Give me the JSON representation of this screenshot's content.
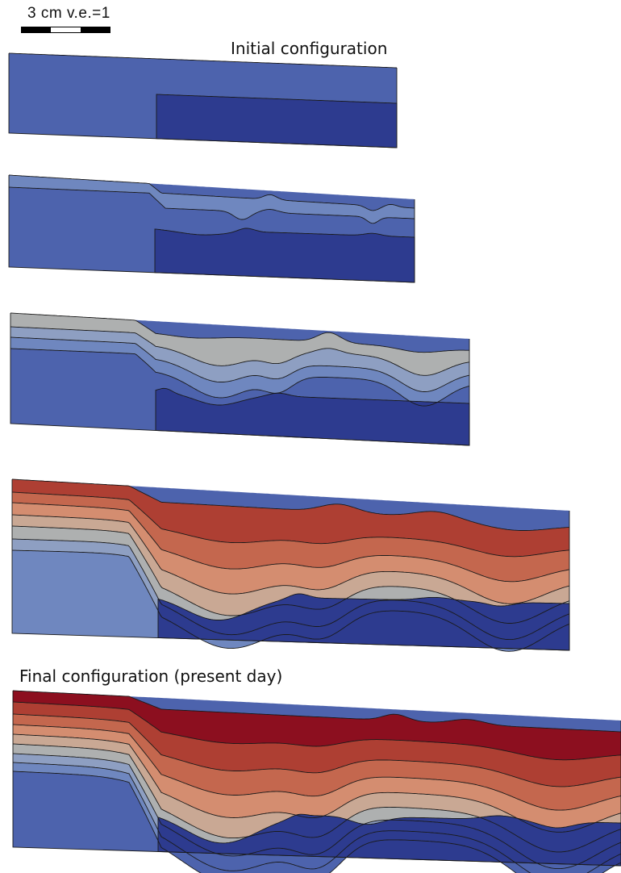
{
  "scale": {
    "label": "3 cm v.e.=1"
  },
  "captions": {
    "initial": "Initial configuration",
    "final": "Final configuration (present day)"
  },
  "colors": {
    "outline": "#1a1a1a",
    "basement_left": "#4d63ad",
    "basement_right": "#2d3b8f",
    "layers": [
      "#4d63ad",
      "#6f87bf",
      "#8e9fc2",
      "#aeb0b0",
      "#c9a894",
      "#d48d70",
      "#c4674e",
      "#ae3f33",
      "#8c0f1f"
    ]
  },
  "stages": [
    {
      "name": "initial",
      "layer_count": 0
    },
    {
      "name": "stage-2",
      "layer_count": 2
    },
    {
      "name": "stage-3",
      "layer_count": 4
    },
    {
      "name": "stage-4",
      "layer_count": 7
    },
    {
      "name": "final",
      "layer_count": 9
    }
  ]
}
